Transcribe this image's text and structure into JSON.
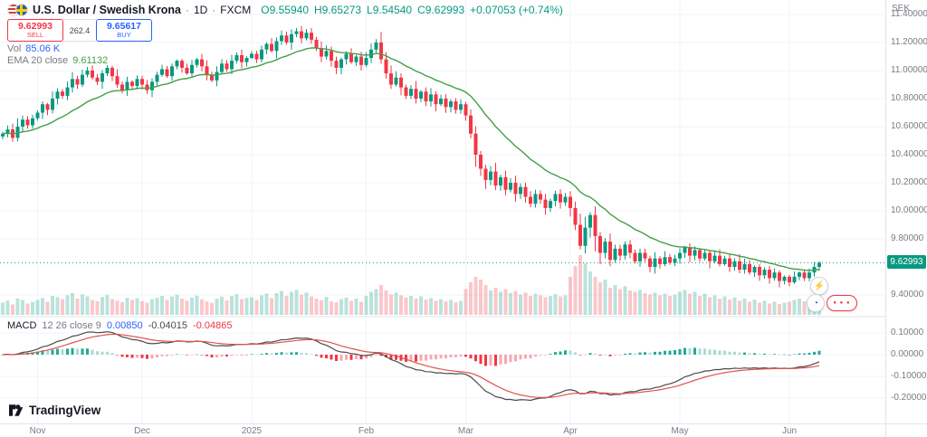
{
  "header": {
    "symbol": "U.S. Dollar / Swedish Krona",
    "separator": "·",
    "timeframe": "1D",
    "exchange": "FXCM",
    "ohlc": [
      "O9.55940",
      "H9.65273",
      "L9.54540",
      "C9.62993",
      "+0.07053 (+0.74%)"
    ],
    "ohlc_color": "#089981"
  },
  "trade_widget": {
    "sell_price": "9.62993",
    "sell_label": "SELL",
    "spread": "262.4",
    "buy_price": "9.65617",
    "buy_label": "BUY",
    "sell_color": "#f23645",
    "buy_color": "#2962ff"
  },
  "indicators": {
    "volume": {
      "label": "Vol",
      "value": "85.06 K",
      "value_color": "#2962ff"
    },
    "ema": {
      "label": "EMA 20 close",
      "value": "9.61132",
      "value_color": "#43a047"
    },
    "macd": {
      "label": "MACD",
      "params": "12 26 close 9",
      "values": [
        {
          "text": "0.00850",
          "color": "#2962ff"
        },
        {
          "text": "-0.04015",
          "color": "#4a4a4a"
        },
        {
          "text": "-0.04865",
          "color": "#f23645"
        }
      ]
    }
  },
  "price_axis": {
    "unit": "SEK",
    "ticks": [
      {
        "label": "11.40000",
        "value": 11.4
      },
      {
        "label": "11.20000",
        "value": 11.2
      },
      {
        "label": "11.00000",
        "value": 11.0
      },
      {
        "label": "10.80000",
        "value": 10.8
      },
      {
        "label": "10.60000",
        "value": 10.6
      },
      {
        "label": "10.40000",
        "value": 10.4
      },
      {
        "label": "10.20000",
        "value": 10.2
      },
      {
        "label": "10.00000",
        "value": 10.0
      },
      {
        "label": "9.80000",
        "value": 9.8
      },
      {
        "label": "9.40000",
        "value": 9.4
      }
    ],
    "last_price": {
      "label": "9.62993",
      "value": 9.62993,
      "color": "#089981"
    }
  },
  "macd_axis": {
    "ticks": [
      {
        "label": "0.10000",
        "value": 0.1
      },
      {
        "label": "0.00000",
        "value": 0.0
      },
      {
        "label": "-0.10000",
        "value": -0.1
      },
      {
        "label": "-0.20000",
        "value": -0.2
      }
    ]
  },
  "time_axis": {
    "ticks": [
      {
        "label": "Nov",
        "index": 7
      },
      {
        "label": "Dec",
        "index": 28
      },
      {
        "label": "2025",
        "index": 50
      },
      {
        "label": "Feb",
        "index": 73
      },
      {
        "label": "Mar",
        "index": 93
      },
      {
        "label": "Apr",
        "index": 114
      },
      {
        "label": "May",
        "index": 136
      },
      {
        "label": "Jun",
        "index": 158
      }
    ]
  },
  "quick_buttons": {
    "lightning": "⚡",
    "gauge": "◔",
    "dots": "● ● ●"
  },
  "logo_text": "TradingView",
  "colors": {
    "up": "#089981",
    "down": "#f23645",
    "vol_up": "rgba(8,153,129,0.28)",
    "vol_down": "rgba(242,54,69,0.28)",
    "ema": "#43a047",
    "grid": "#f0f3fa",
    "separator": "#e0e3eb",
    "axis_text": "#787b86",
    "macd_line": "#4a4a4a",
    "signal_line": "#e0524c",
    "hist_up_grow": "#22ab94",
    "hist_up_fall": "#a8dcd2",
    "hist_down_fall": "#f23645",
    "hist_down_grow": "#f6a8af"
  },
  "chart_data": {
    "type": "candlestick",
    "title": "U.S. Dollar / Swedish Krona · 1D · FXCM",
    "x_months": [
      "Nov",
      "Dec",
      "2025",
      "Feb",
      "Mar",
      "Apr",
      "May",
      "Jun"
    ],
    "price_ylim": [
      9.25,
      11.5
    ],
    "macd_ylim": [
      -0.3,
      0.17
    ],
    "ema_period": 20,
    "macd_params": [
      12,
      26,
      9
    ],
    "close": [
      10.55,
      10.58,
      10.52,
      10.6,
      10.65,
      10.61,
      10.66,
      10.7,
      10.76,
      10.72,
      10.8,
      10.85,
      10.82,
      10.88,
      10.94,
      10.9,
      10.97,
      11.0,
      10.95,
      10.92,
      10.98,
      11.02,
      10.96,
      10.9,
      10.86,
      10.92,
      10.89,
      10.94,
      10.9,
      10.86,
      10.92,
      10.97,
      11.01,
      10.96,
      11.03,
      11.07,
      11.02,
      10.98,
      11.04,
      11.08,
      11.03,
      10.97,
      10.93,
      10.99,
      11.05,
      11.01,
      11.07,
      11.11,
      11.06,
      11.09,
      11.12,
      11.08,
      11.15,
      11.19,
      11.14,
      11.21,
      11.25,
      11.2,
      11.26,
      11.28,
      11.23,
      11.27,
      11.22,
      11.16,
      11.1,
      11.14,
      11.07,
      11.02,
      11.08,
      11.12,
      11.06,
      11.1,
      11.04,
      11.09,
      11.15,
      11.2,
      11.08,
      10.98,
      10.9,
      10.95,
      10.88,
      10.82,
      10.87,
      10.8,
      10.85,
      10.78,
      10.83,
      10.76,
      10.8,
      10.74,
      10.78,
      10.72,
      10.76,
      10.68,
      10.55,
      10.4,
      10.3,
      10.22,
      10.28,
      10.18,
      10.24,
      10.15,
      10.2,
      10.12,
      10.17,
      10.1,
      10.05,
      10.12,
      10.08,
      10.02,
      10.07,
      10.12,
      10.06,
      10.1,
      10.02,
      9.9,
      9.75,
      9.88,
      9.97,
      9.82,
      9.7,
      9.78,
      9.65,
      9.73,
      9.68,
      9.76,
      9.7,
      9.64,
      9.7,
      9.66,
      9.6,
      9.66,
      9.62,
      9.67,
      9.63,
      9.66,
      9.7,
      9.74,
      9.68,
      9.72,
      9.66,
      9.7,
      9.64,
      9.68,
      9.62,
      9.66,
      9.6,
      9.64,
      9.58,
      9.62,
      9.56,
      9.6,
      9.54,
      9.58,
      9.52,
      9.56,
      9.5,
      9.53,
      9.49,
      9.53,
      9.56,
      9.52,
      9.56,
      9.6,
      9.63
    ],
    "volume_k": [
      45,
      52,
      38,
      60,
      55,
      42,
      48,
      55,
      62,
      48,
      70,
      65,
      58,
      72,
      80,
      60,
      75,
      68,
      55,
      50,
      66,
      73,
      58,
      52,
      47,
      63,
      56,
      61,
      50,
      45,
      58,
      63,
      70,
      55,
      68,
      74,
      60,
      52,
      64,
      71,
      57,
      49,
      44,
      59,
      67,
      53,
      70,
      76,
      58,
      62,
      65,
      55,
      72,
      78,
      62,
      80,
      88,
      70,
      85,
      92,
      74,
      82,
      68,
      60,
      54,
      66,
      50,
      46,
      58,
      64,
      52,
      60,
      48,
      70,
      85,
      95,
      110,
      90,
      75,
      82,
      72,
      64,
      70,
      60,
      68,
      56,
      62,
      52,
      58,
      50,
      55,
      46,
      52,
      95,
      120,
      140,
      130,
      110,
      90,
      100,
      85,
      95,
      80,
      88,
      75,
      82,
      70,
      78,
      72,
      65,
      70,
      76,
      68,
      72,
      140,
      180,
      220,
      190,
      160,
      140,
      120,
      130,
      100,
      110,
      95,
      105,
      90,
      85,
      92,
      80,
      75,
      82,
      72,
      78,
      70,
      74,
      85,
      92,
      78,
      85,
      70,
      78,
      65,
      72,
      60,
      68,
      56,
      64,
      52,
      60,
      48,
      56,
      45,
      52,
      42,
      48,
      40,
      45,
      48,
      55,
      60,
      50,
      58,
      70,
      85
    ]
  }
}
